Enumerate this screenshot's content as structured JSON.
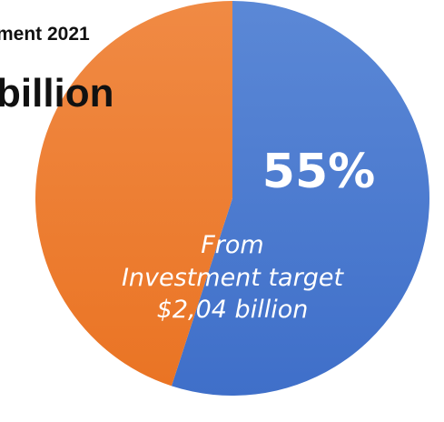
{
  "header": {
    "title_fragment": "ment 2021",
    "subtitle_fragment": "billion"
  },
  "chart_data": {
    "type": "pie",
    "slices": [
      {
        "value": 55,
        "color": "#4472C4",
        "color_light": "#5B88D6"
      },
      {
        "value": 45,
        "color": "#ED7D31",
        "color_light": "#F08A44"
      }
    ],
    "data_label": "55%",
    "center_text": [
      "From",
      "Investment target",
      "$2,04 billion"
    ]
  }
}
